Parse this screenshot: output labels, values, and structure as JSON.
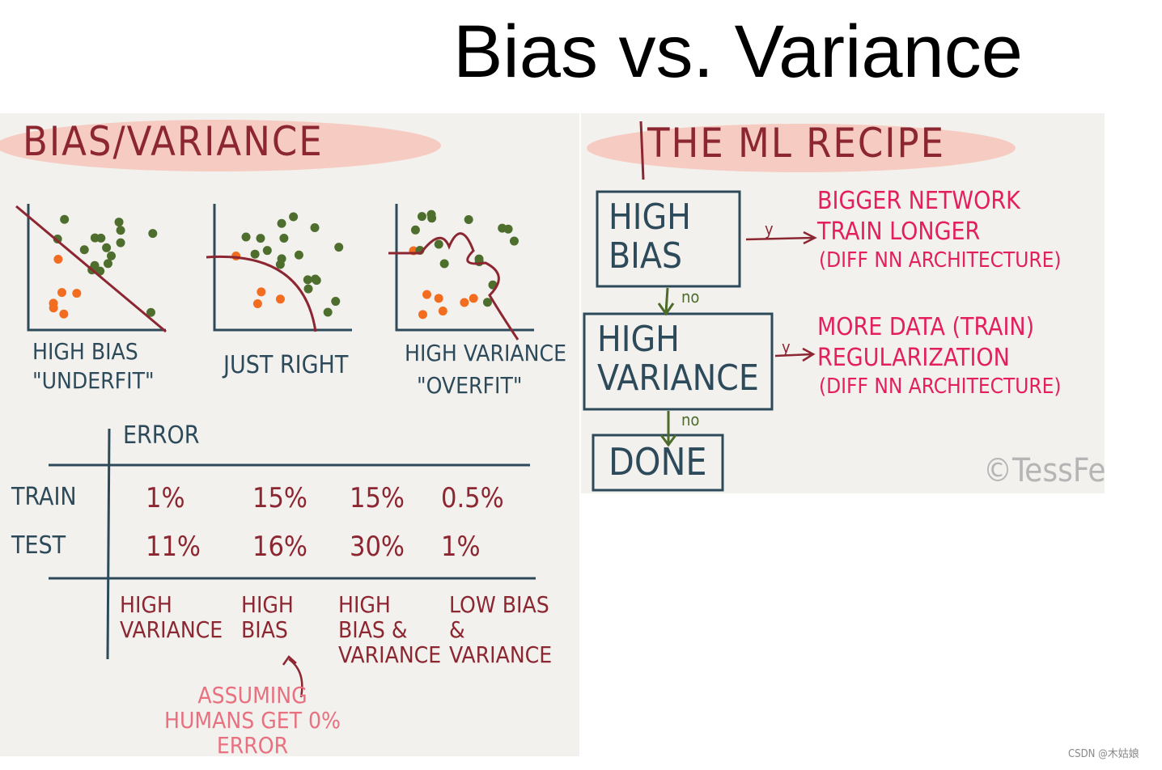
{
  "title": "Bias vs. Variance",
  "left_panel": {
    "heading": "BIAS/VARIANCE",
    "plots": [
      {
        "label": "HIGH BIAS",
        "sublabel": "\"UNDERFIT\""
      },
      {
        "label": "JUST RIGHT"
      },
      {
        "label": "HIGH VARIANCE",
        "sublabel": "\"OVERFIT\""
      }
    ],
    "table": {
      "header": "ERROR",
      "row_labels": [
        "TRAIN",
        "TEST"
      ],
      "rows": [
        [
          "1%",
          "15%",
          "15%",
          "0.5%"
        ],
        [
          "11%",
          "16%",
          "30%",
          "1%"
        ]
      ],
      "verdicts": [
        "HIGH VARIANCE",
        "HIGH BIAS",
        "HIGH BIAS & VARIANCE",
        "LOW BIAS & VARIANCE"
      ]
    },
    "note": "ASSUMING HUMANS GET 0% ERROR"
  },
  "right_panel": {
    "heading": "THE ML RECIPE",
    "boxes": [
      "HIGH BIAS",
      "HIGH VARIANCE",
      "DONE"
    ],
    "yes_label": "y",
    "no_label": "no",
    "remedies": [
      [
        "BIGGER NETWORK",
        "TRAIN LONGER",
        "(DIFF NN ARCHITECTURE)"
      ],
      [
        "MORE DATA (TRAIN)",
        "REGULARIZATION",
        "(DIFF NN ARCHITECTURE)"
      ]
    ],
    "credit": "©TessFe"
  },
  "watermark": "CSDN @木姑娘"
}
